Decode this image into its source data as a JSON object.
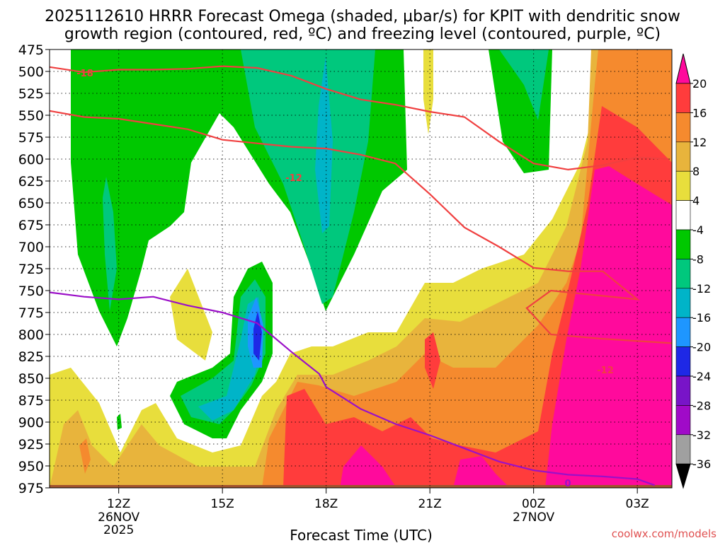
{
  "chart_data": {
    "type": "heatmap",
    "title_line1": "2025112610 HRRR Forecast Omega (shaded, μbar/s) for KPIT with dendritic snow",
    "title_line2": "growth region (contoured, red, ºC) and freezing level (contoured, purple, ºC)",
    "xlabel": "Forecast Time (UTC)",
    "watermark": "coolwx.com/models",
    "y_ticks": [
      475,
      500,
      525,
      550,
      575,
      600,
      625,
      650,
      675,
      700,
      725,
      750,
      775,
      800,
      825,
      850,
      875,
      900,
      925,
      950,
      975
    ],
    "x_ticks": [
      {
        "hour": 12,
        "label": "12Z",
        "date": "26NOV",
        "year": "2025"
      },
      {
        "hour": 15,
        "label": "15Z",
        "date": "",
        "year": ""
      },
      {
        "hour": 18,
        "label": "18Z",
        "date": "",
        "year": ""
      },
      {
        "hour": 21,
        "label": "21Z",
        "date": "",
        "year": ""
      },
      {
        "hour": 24,
        "label": "00Z",
        "date": "27NOV",
        "year": ""
      },
      {
        "hour": 27,
        "label": "03Z",
        "date": "",
        "year": ""
      }
    ],
    "x_range_hours": [
      10,
      28
    ],
    "y_range_mb": [
      475,
      975
    ],
    "colorbar": {
      "levels": [
        20,
        16,
        12,
        8,
        4,
        -4,
        -8,
        -12,
        -16,
        -20,
        -24,
        -28,
        -32,
        -36
      ],
      "colors": [
        "#ff0a9c",
        "#ff3c3c",
        "#f58a2e",
        "#e8b43c",
        "#e8de3c",
        "#ffffff",
        "#00c800",
        "#00c87d",
        "#00b4c8",
        "#1e96ff",
        "#1e28e6",
        "#7814c8",
        "#a00ac8",
        "#a0a0a0"
      ]
    },
    "contours": {
      "dendritic_upper": {
        "label": "-18",
        "color": "#f04040",
        "points": [
          [
            10,
            495
          ],
          [
            11,
            501
          ],
          [
            12,
            498
          ],
          [
            13,
            498
          ],
          [
            14,
            497
          ],
          [
            15,
            494
          ],
          [
            16,
            496
          ],
          [
            17,
            505
          ],
          [
            18,
            520
          ],
          [
            19,
            532
          ],
          [
            20,
            538
          ],
          [
            21,
            546
          ],
          [
            22,
            552
          ],
          [
            23,
            580
          ],
          [
            24,
            605
          ],
          [
            25,
            612
          ],
          [
            26,
            607
          ],
          [
            27,
            598
          ],
          [
            27.9,
            600
          ]
        ]
      },
      "dendritic_lower": {
        "label": "-12",
        "color": "#f04040",
        "points": [
          [
            10,
            545
          ],
          [
            11,
            552
          ],
          [
            12,
            554
          ],
          [
            13,
            560
          ],
          [
            14,
            566
          ],
          [
            15,
            578
          ],
          [
            16,
            582
          ],
          [
            17,
            586
          ],
          [
            18,
            588
          ],
          [
            19,
            595
          ],
          [
            20,
            605
          ],
          [
            21,
            640
          ],
          [
            22,
            678
          ],
          [
            23,
            700
          ],
          [
            24,
            724
          ],
          [
            25,
            728
          ],
          [
            26,
            728
          ],
          [
            27,
            760
          ],
          [
            24.5,
            750
          ],
          [
            23.8,
            770
          ],
          [
            24.5,
            800
          ],
          [
            26,
            805
          ],
          [
            28,
            810
          ]
        ]
      },
      "freezing_level": {
        "label": "0",
        "color": "#9b10c8",
        "points": [
          [
            10,
            752
          ],
          [
            11,
            757
          ],
          [
            12,
            760
          ],
          [
            13,
            757
          ],
          [
            14,
            767
          ],
          [
            15,
            775
          ],
          [
            16,
            787
          ],
          [
            17,
            820
          ],
          [
            17.8,
            845
          ],
          [
            18,
            860
          ],
          [
            19,
            885
          ],
          [
            20,
            902
          ],
          [
            21,
            915
          ],
          [
            22,
            930
          ],
          [
            23,
            945
          ],
          [
            24,
            955
          ],
          [
            25,
            960
          ],
          [
            26,
            962
          ],
          [
            27,
            965
          ],
          [
            27.5,
            972
          ]
        ]
      }
    }
  }
}
